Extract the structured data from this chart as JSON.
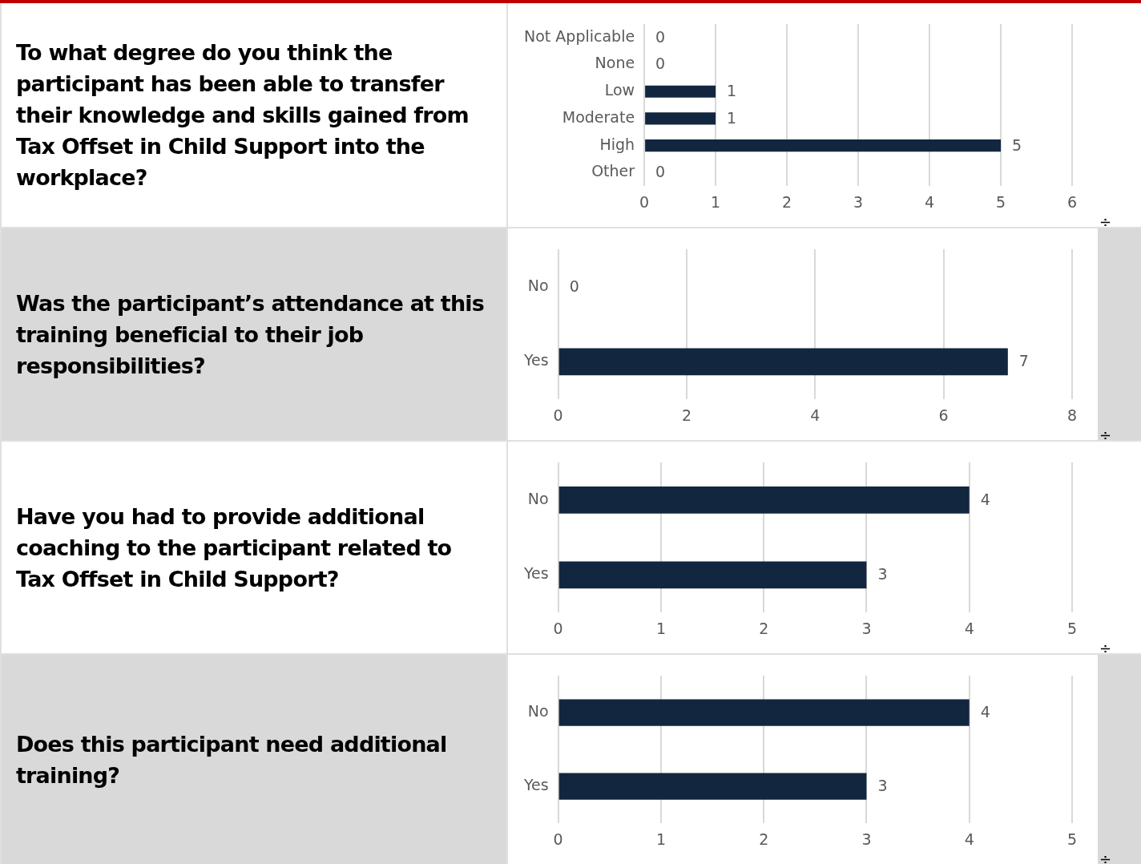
{
  "chart_data": [
    {
      "type": "bar",
      "orientation": "horizontal",
      "title": "To what degree do you think the participant has been able to transfer their knowledge and skills gained from Tax Offset in Child Support into the workplace?",
      "categories": [
        "Not Applicable",
        "None",
        "Low",
        "Moderate",
        "High",
        "Other"
      ],
      "values": [
        0,
        0,
        1,
        1,
        5,
        0
      ],
      "color": "#12263f",
      "xlim": [
        0,
        6
      ],
      "xticks": [
        0,
        1,
        2,
        3,
        4,
        5,
        6
      ],
      "grid": "x",
      "legend": false,
      "data_labels": true,
      "annotations": [
        "÷"
      ]
    },
    {
      "type": "bar",
      "orientation": "horizontal",
      "title": "Was the participant’s attendance at this training beneficial to their job responsibilities?",
      "categories": [
        "No",
        "Yes"
      ],
      "values": [
        0,
        7
      ],
      "color": "#12263f",
      "xlim": [
        0,
        8
      ],
      "xticks": [
        0,
        2,
        4,
        6,
        8
      ],
      "grid": "x",
      "legend": false,
      "data_labels": true,
      "annotations": [
        "÷"
      ]
    },
    {
      "type": "bar",
      "orientation": "horizontal",
      "title": "Have you had to provide additional coaching to the participant related to Tax Offset in Child Support?",
      "categories": [
        "No",
        "Yes"
      ],
      "values": [
        4,
        3
      ],
      "color": "#12263f",
      "xlim": [
        0,
        5
      ],
      "xticks": [
        0,
        1,
        2,
        3,
        4,
        5
      ],
      "grid": "x",
      "legend": false,
      "data_labels": true,
      "annotations": [
        "÷"
      ]
    },
    {
      "type": "bar",
      "orientation": "horizontal",
      "title": "Does this participant need additional training?",
      "categories": [
        "No",
        "Yes"
      ],
      "values": [
        4,
        3
      ],
      "color": "#12263f",
      "xlim": [
        0,
        5
      ],
      "xticks": [
        0,
        1,
        2,
        3,
        4,
        5
      ],
      "grid": "x",
      "legend": false,
      "data_labels": true,
      "annotations": [
        "÷"
      ]
    }
  ]
}
